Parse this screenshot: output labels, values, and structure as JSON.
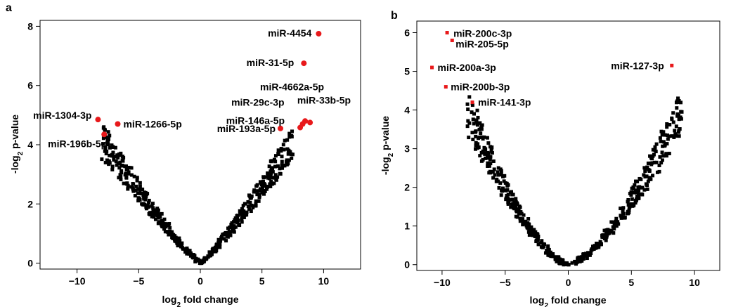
{
  "chart_data": [
    {
      "panel": "a",
      "type": "scatter",
      "xlabel": "log2 fold change",
      "ylabel": "-log2 p-value",
      "xlim": [
        -13,
        13
      ],
      "ylim": [
        -0.2,
        8.2
      ],
      "xticks": [
        -10,
        -5,
        0,
        5,
        10
      ],
      "yticks": [
        0,
        2,
        4,
        6,
        8
      ],
      "xtick_labels": [
        "−10",
        "−5",
        "0",
        "5",
        "10"
      ],
      "ytick_labels": [
        "0",
        "2",
        "4",
        "6",
        "8"
      ],
      "grid": false,
      "point_color": "#000000",
      "highlight_color": "#e8191b",
      "highlighted": [
        {
          "label": "miR-4454",
          "x": 9.6,
          "y": 7.75
        },
        {
          "label": "miR-31-5p",
          "x": 8.4,
          "y": 6.75
        },
        {
          "label": "miR-4662a-5p",
          "x": 8.5,
          "y": 4.8
        },
        {
          "label": "miR-29c-3p",
          "x": 8.3,
          "y": 4.7
        },
        {
          "label": "miR-33b-5p",
          "x": 8.9,
          "y": 4.75
        },
        {
          "label": "miR-146a-5p",
          "x": 8.1,
          "y": 4.58
        },
        {
          "label": "miR-193a-5p",
          "x": 6.5,
          "y": 4.55
        },
        {
          "label": "miR-1304-3p",
          "x": -8.3,
          "y": 4.85
        },
        {
          "label": "miR-1266-5p",
          "x": -6.7,
          "y": 4.7
        },
        {
          "label": "miR-196b-5p",
          "x": -7.8,
          "y": 4.35
        }
      ]
    },
    {
      "panel": "b",
      "type": "scatter",
      "xlabel": "log2 fold change",
      "ylabel": "-log2 p-value",
      "xlim": [
        -12,
        12
      ],
      "ylim": [
        -0.15,
        6.3
      ],
      "xticks": [
        -10,
        -5,
        0,
        5,
        10
      ],
      "yticks": [
        0,
        1,
        2,
        3,
        4,
        5,
        6
      ],
      "xtick_labels": [
        "−10",
        "−5",
        "0",
        "5",
        "10"
      ],
      "ytick_labels": [
        "0",
        "1",
        "2",
        "3",
        "4",
        "5",
        "6"
      ],
      "grid": false,
      "point_color": "#000000",
      "highlight_color": "#e8191b",
      "highlighted": [
        {
          "label": "miR-200c-3p",
          "x": -9.6,
          "y": 6.0
        },
        {
          "label": "miR-205-5p",
          "x": -9.2,
          "y": 5.8
        },
        {
          "label": "miR-127-3p",
          "x": 8.2,
          "y": 5.15
        },
        {
          "label": "miR-200a-3p",
          "x": -10.8,
          "y": 5.1
        },
        {
          "label": "miR-200b-3p",
          "x": -9.7,
          "y": 4.6
        },
        {
          "label": "miR-141-3p",
          "x": -7.6,
          "y": 4.2
        }
      ]
    }
  ]
}
